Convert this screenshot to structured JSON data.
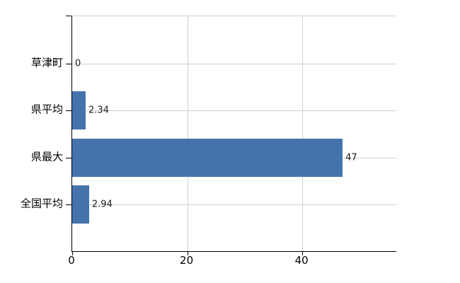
{
  "chart_data": {
    "type": "bar",
    "orientation": "horizontal",
    "title": "",
    "xlabel": "",
    "ylabel": "",
    "categories": [
      "草津町",
      "県平均",
      "県最大",
      "全国平均"
    ],
    "values": [
      0,
      2.34,
      47,
      2.94
    ],
    "value_labels": [
      "0",
      "2.34",
      "47",
      "2.94"
    ],
    "x_ticks": [
      0,
      20,
      40
    ],
    "x_tick_labels": [
      "0",
      "20",
      "40"
    ],
    "xlim": [
      0,
      56.3
    ],
    "grid": true,
    "legend": false,
    "bar_color": "#4574ad",
    "grid_color": "#ccd4cc",
    "axis_color": "#000000",
    "text_color": "#000000",
    "background": "#ffffff"
  }
}
